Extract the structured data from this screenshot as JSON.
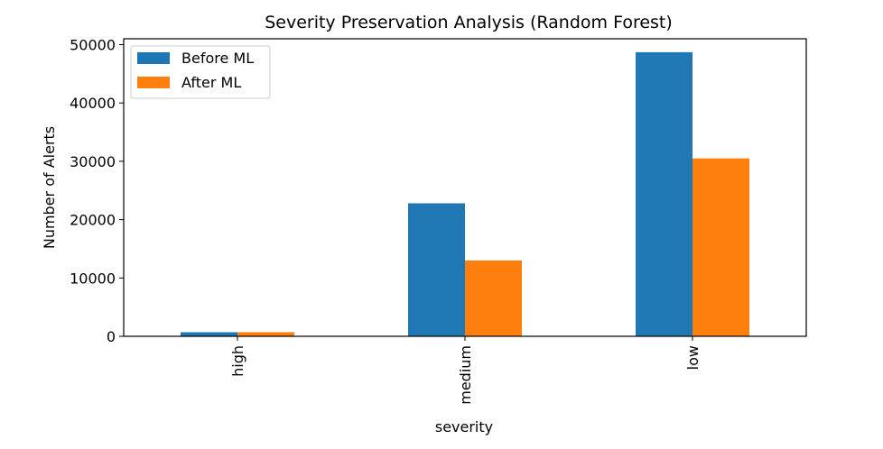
{
  "chart_data": {
    "type": "bar",
    "title": "Severity Preservation Analysis (Random Forest)",
    "xlabel": "severity",
    "ylabel": "Number of Alerts",
    "categories": [
      "high",
      "medium",
      "low"
    ],
    "series": [
      {
        "name": "Before ML",
        "color": "#1f77b4",
        "values": [
          700,
          22800,
          48700
        ]
      },
      {
        "name": "After ML",
        "color": "#ff7f0e",
        "values": [
          700,
          13000,
          30500
        ]
      }
    ],
    "ylim": [
      0,
      51000
    ],
    "yticks": [
      0,
      10000,
      20000,
      30000,
      40000,
      50000
    ],
    "grid": false,
    "legend_position": "top-left"
  }
}
